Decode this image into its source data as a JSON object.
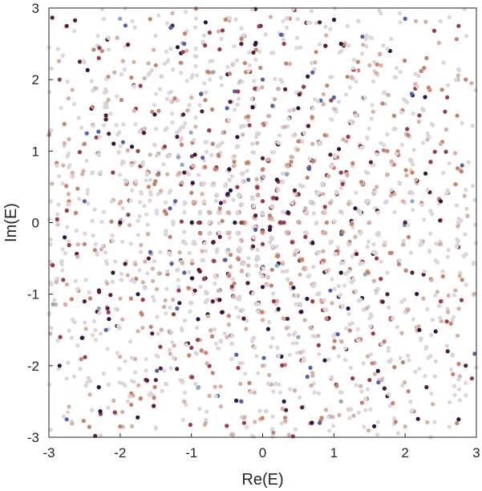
{
  "chart_data": {
    "type": "scatter",
    "xlabel": "Re(E)",
    "ylabel": "Im(E)",
    "xlim": [
      -3,
      3
    ],
    "ylim": [
      -3,
      3
    ],
    "xticks": [
      -3,
      -2,
      -1,
      0,
      1,
      2,
      3
    ],
    "yticks": [
      -3,
      -2,
      -1,
      0,
      1,
      2,
      3
    ],
    "xtick_labels": [
      "-3",
      "-2",
      "-1",
      "0",
      "1",
      "2",
      "3"
    ],
    "ytick_labels": [
      "-3",
      "-2",
      "-1",
      "0",
      "1",
      "2",
      "3"
    ],
    "grid": false,
    "box": true,
    "colormap": [
      "#ddd4dc",
      "#d9b0a0",
      "#c98265",
      "#9c3a4a",
      "#5a1a3a",
      "#2e1248",
      "#5060b0",
      "#8aa8cc"
    ],
    "points": [
      [
        0.0,
        0.0,
        1
      ],
      [
        0.1,
        0.1,
        2
      ],
      [
        -0.1,
        0.1,
        4
      ],
      [
        0.1,
        -0.1,
        5
      ],
      [
        -0.1,
        -0.1,
        6
      ],
      [
        0.3,
        0.0,
        3
      ],
      [
        -0.3,
        0.0,
        3
      ],
      [
        0.0,
        0.3,
        3
      ],
      [
        0.0,
        -0.3,
        3
      ],
      [
        0.45,
        0.45,
        4
      ],
      [
        -0.45,
        0.45,
        5
      ],
      [
        0.45,
        -0.45,
        1
      ],
      [
        -0.45,
        -0.45,
        2
      ],
      [
        0.6,
        0.2,
        1
      ],
      [
        -0.6,
        0.2,
        2
      ],
      [
        0.6,
        -0.2,
        3
      ],
      [
        -0.6,
        -0.2,
        4
      ],
      [
        0.2,
        0.6,
        5
      ],
      [
        -0.2,
        0.6,
        6
      ],
      [
        0.2,
        -0.6,
        7
      ],
      [
        -0.2,
        -0.6,
        1
      ],
      [
        0.9,
        0.0,
        2
      ],
      [
        -0.9,
        0.0,
        3
      ],
      [
        0.0,
        0.9,
        4
      ],
      [
        0.0,
        -0.9,
        5
      ],
      [
        0.85,
        0.4,
        1
      ],
      [
        -0.85,
        0.4,
        1
      ],
      [
        0.85,
        -0.4,
        1
      ],
      [
        -0.85,
        -0.4,
        1
      ],
      [
        0.4,
        0.85,
        2
      ],
      [
        -0.4,
        0.85,
        2
      ],
      [
        0.4,
        -0.85,
        2
      ],
      [
        -0.4,
        -0.85,
        2
      ],
      [
        1.1,
        0.7,
        3
      ],
      [
        -1.1,
        0.7,
        4
      ],
      [
        1.1,
        -0.7,
        5
      ],
      [
        -1.1,
        -0.7,
        6
      ],
      [
        0.7,
        1.1,
        1
      ],
      [
        -0.7,
        1.1,
        2
      ],
      [
        0.7,
        -1.1,
        3
      ],
      [
        -0.7,
        -1.1,
        4
      ],
      [
        1.3,
        0.2,
        5
      ],
      [
        -1.3,
        0.2,
        6
      ],
      [
        1.3,
        -0.2,
        1
      ],
      [
        -1.3,
        -0.2,
        2
      ],
      [
        1.2,
        1.2,
        3
      ],
      [
        -1.2,
        1.2,
        4
      ],
      [
        1.2,
        -1.2,
        5
      ],
      [
        -1.2,
        -1.2,
        6
      ],
      [
        1.6,
        0.5,
        1
      ],
      [
        -1.6,
        0.5,
        2
      ],
      [
        1.6,
        -0.5,
        3
      ],
      [
        -1.6,
        -0.5,
        4
      ],
      [
        0.5,
        1.6,
        5
      ],
      [
        -0.5,
        1.6,
        6
      ],
      [
        0.5,
        -1.6,
        7
      ],
      [
        -0.5,
        -1.6,
        1
      ],
      [
        1.75,
        1.0,
        2
      ],
      [
        -1.75,
        1.0,
        3
      ],
      [
        1.75,
        -1.0,
        4
      ],
      [
        -1.75,
        -1.0,
        5
      ],
      [
        1.0,
        1.75,
        6
      ],
      [
        -1.0,
        1.75,
        1
      ],
      [
        1.0,
        -1.75,
        2
      ],
      [
        -1.0,
        -1.75,
        3
      ],
      [
        2.0,
        0.0,
        4
      ],
      [
        -2.0,
        0.0,
        5
      ],
      [
        0.0,
        2.0,
        6
      ],
      [
        0.0,
        -2.0,
        1
      ],
      [
        2.1,
        0.7,
        2
      ],
      [
        -2.1,
        0.7,
        3
      ],
      [
        2.1,
        -0.7,
        4
      ],
      [
        -2.1,
        -0.7,
        5
      ],
      [
        0.7,
        2.1,
        6
      ],
      [
        -0.7,
        2.1,
        7
      ],
      [
        0.7,
        -2.1,
        1
      ],
      [
        -0.7,
        -2.1,
        2
      ],
      [
        2.2,
        1.5,
        3
      ],
      [
        -2.2,
        1.5,
        4
      ],
      [
        2.2,
        -1.5,
        5
      ],
      [
        -2.2,
        -1.5,
        6
      ],
      [
        1.5,
        2.2,
        1
      ],
      [
        -1.5,
        2.2,
        2
      ],
      [
        1.5,
        -2.2,
        3
      ],
      [
        -1.5,
        -2.2,
        4
      ],
      [
        2.5,
        0.3,
        5
      ],
      [
        -2.5,
        0.3,
        6
      ],
      [
        2.5,
        -0.3,
        1
      ],
      [
        -2.5,
        -0.3,
        2
      ],
      [
        0.3,
        2.5,
        3
      ],
      [
        -0.3,
        2.5,
        4
      ],
      [
        0.3,
        -2.5,
        5
      ],
      [
        -0.3,
        -2.5,
        6
      ],
      [
        2.5,
        1.1,
        1
      ],
      [
        -2.5,
        1.1,
        2
      ],
      [
        2.5,
        -1.1,
        3
      ],
      [
        -2.5,
        -1.1,
        4
      ],
      [
        1.1,
        2.5,
        5
      ],
      [
        -1.1,
        2.5,
        6
      ],
      [
        1.1,
        -2.5,
        7
      ],
      [
        -1.1,
        -2.5,
        1
      ],
      [
        2.3,
        2.3,
        2
      ],
      [
        -2.3,
        2.3,
        3
      ],
      [
        2.3,
        -2.3,
        4
      ],
      [
        -2.3,
        -2.3,
        5
      ],
      [
        2.8,
        0.8,
        6
      ],
      [
        -2.8,
        0.8,
        1
      ],
      [
        2.8,
        -0.8,
        2
      ],
      [
        -2.8,
        -0.8,
        3
      ],
      [
        0.8,
        2.8,
        4
      ],
      [
        -0.8,
        2.8,
        5
      ],
      [
        0.8,
        -2.8,
        6
      ],
      [
        -0.8,
        -2.8,
        1
      ],
      [
        2.85,
        2.0,
        2
      ],
      [
        -2.85,
        2.0,
        3
      ],
      [
        2.85,
        -2.0,
        4
      ],
      [
        -2.85,
        -2.0,
        5
      ],
      [
        2.0,
        2.85,
        6
      ],
      [
        -2.0,
        2.85,
        7
      ],
      [
        2.0,
        -2.85,
        1
      ],
      [
        -2.0,
        -2.85,
        2
      ],
      [
        2.75,
        2.75,
        3
      ],
      [
        -2.75,
        2.75,
        4
      ],
      [
        2.75,
        -2.75,
        5
      ],
      [
        -2.75,
        -2.75,
        6
      ],
      [
        1.55,
        1.55,
        1
      ],
      [
        -1.55,
        1.55,
        2
      ],
      [
        1.55,
        -1.55,
        3
      ],
      [
        -1.55,
        -1.55,
        4
      ],
      [
        2.1,
        0.3,
        7
      ],
      [
        -2.3,
        -1.2,
        7
      ],
      [
        1.4,
        2.6,
        6
      ],
      [
        -0.9,
        -2.3,
        7
      ],
      [
        0.95,
        0.95,
        4
      ],
      [
        -0.95,
        0.95,
        5
      ],
      [
        0.95,
        -0.95,
        6
      ],
      [
        -0.95,
        -0.95,
        4
      ]
    ],
    "filler": {
      "count": 3200,
      "seed": 12345
    }
  }
}
